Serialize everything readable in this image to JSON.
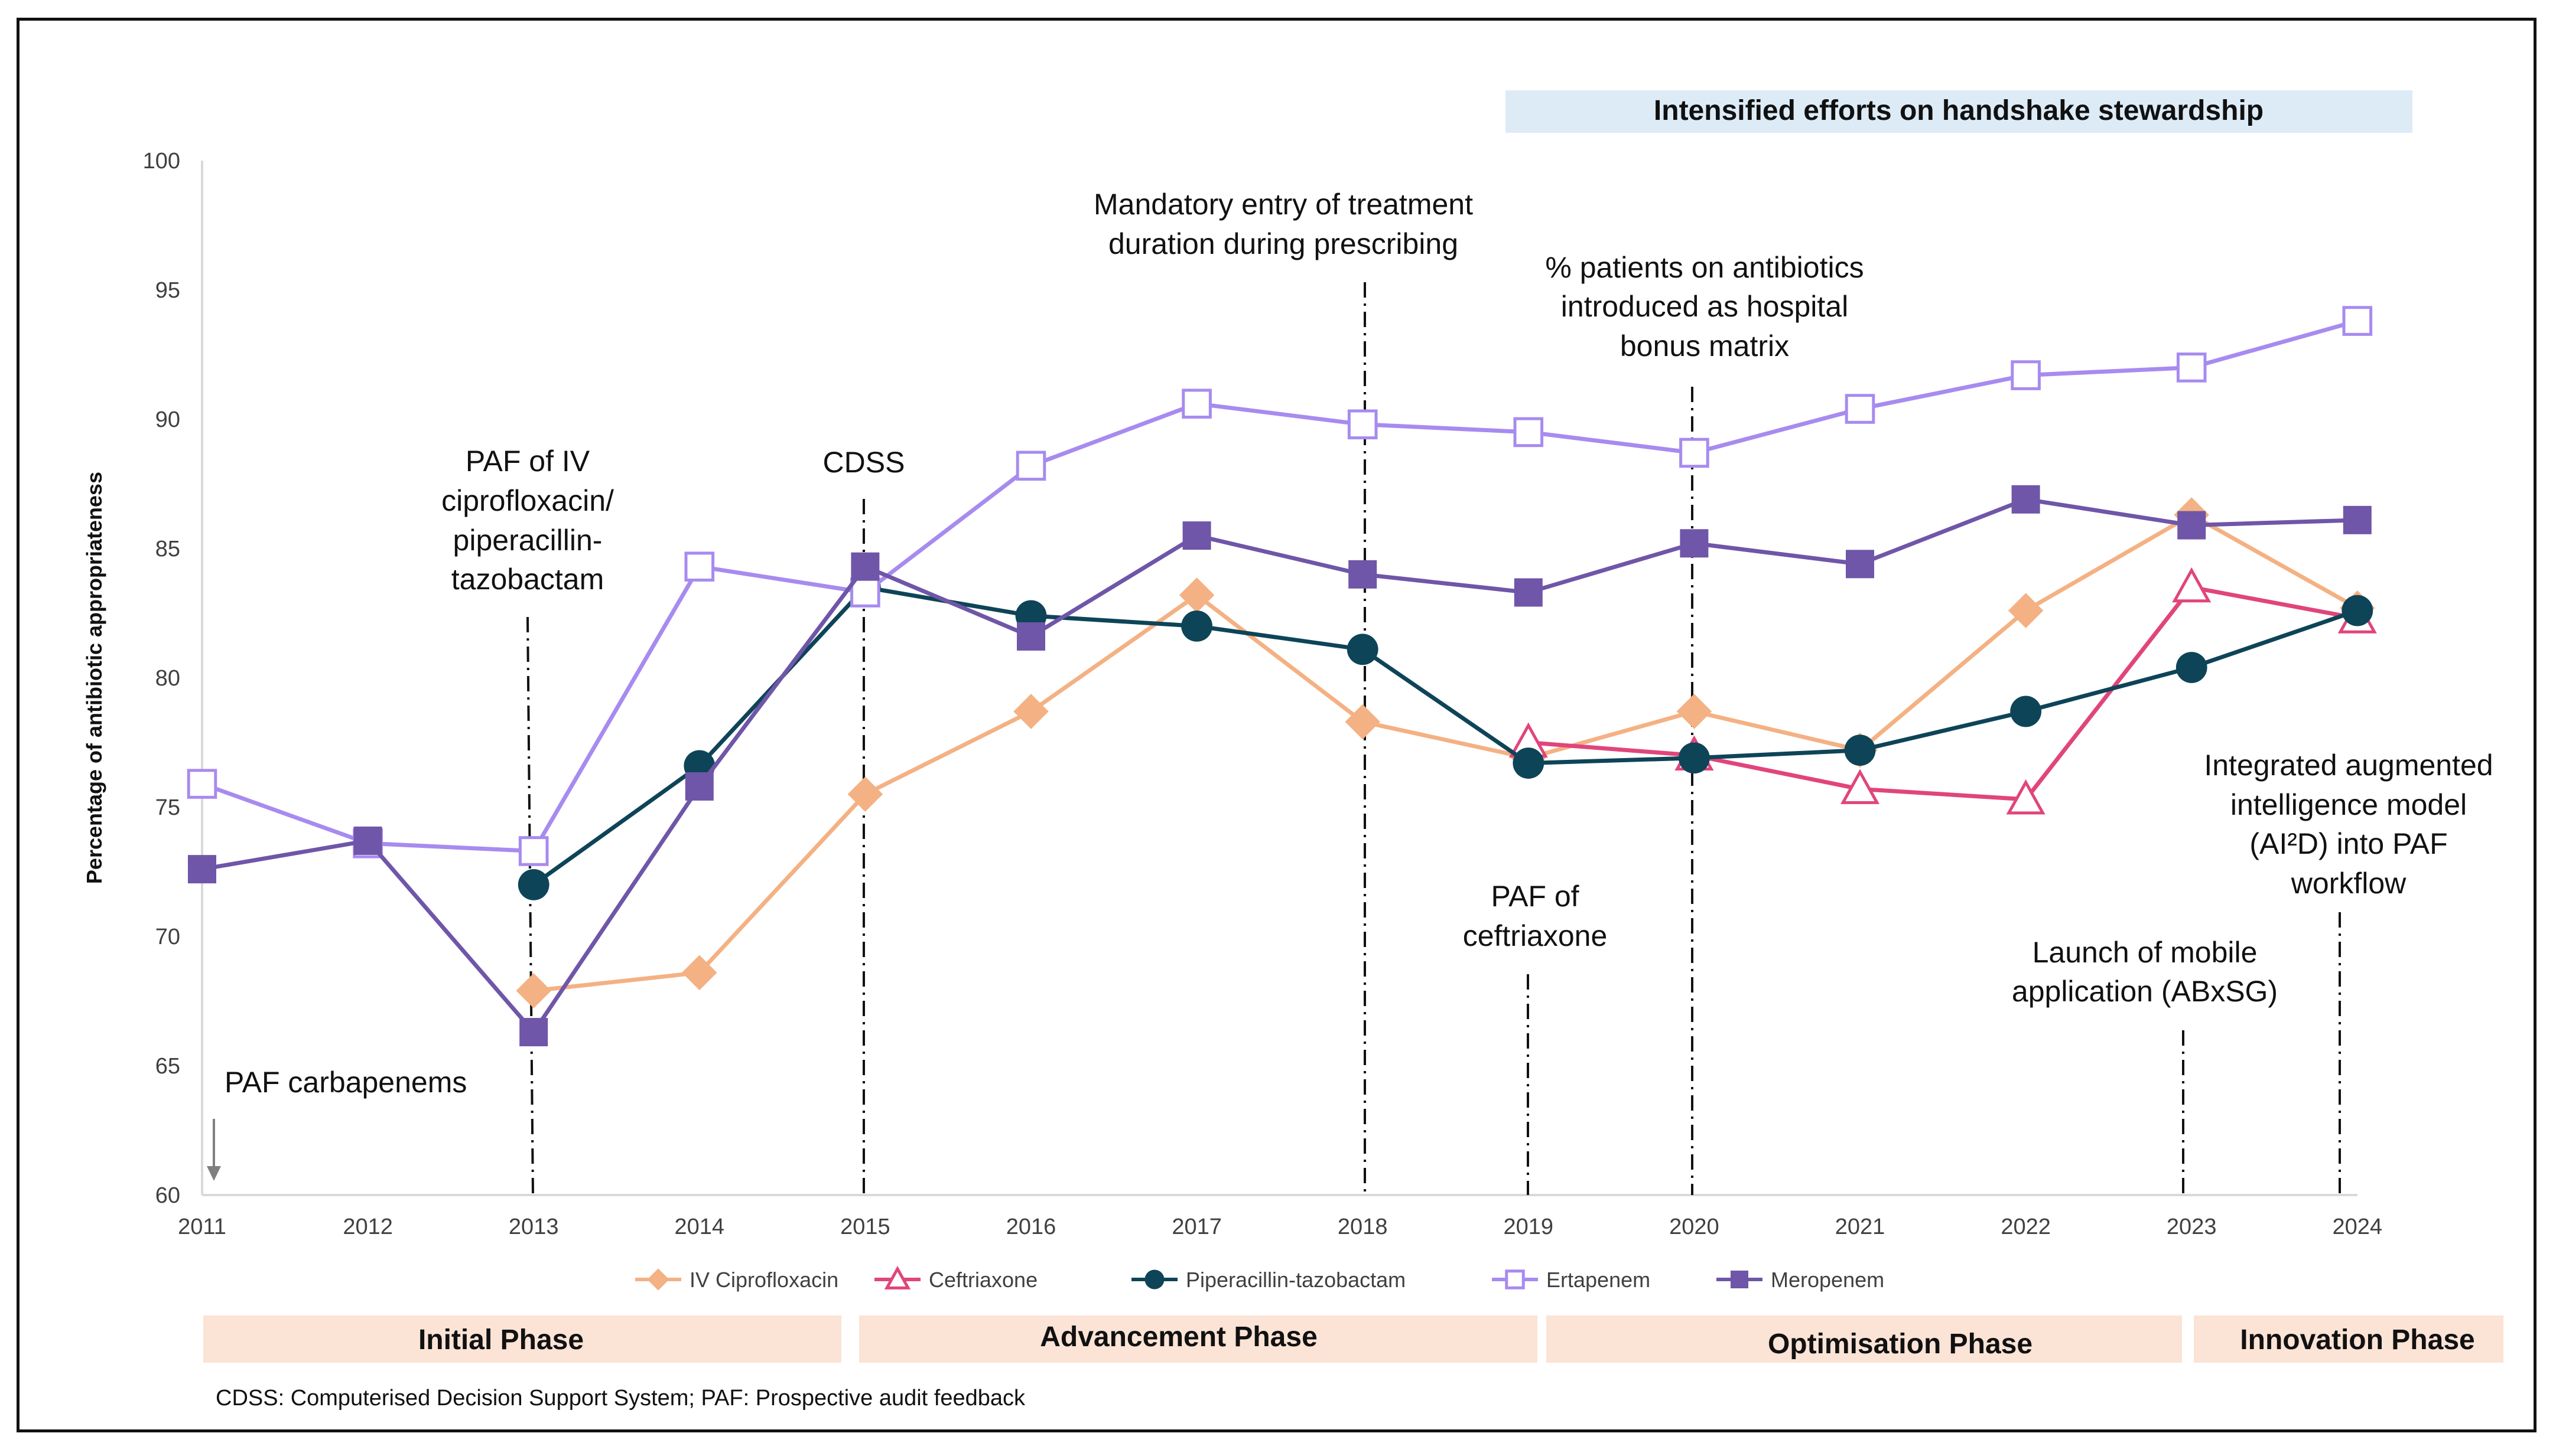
{
  "chart_data": {
    "type": "line",
    "title": "",
    "xlabel": "",
    "ylabel": "Percentage of antibiotic appropriateness",
    "ylim": [
      60,
      100
    ],
    "y_ticks": [
      60,
      65,
      70,
      75,
      80,
      85,
      90,
      95,
      100
    ],
    "x": [
      2011,
      2012,
      2013,
      2014,
      2015,
      2016,
      2017,
      2018,
      2019,
      2020,
      2021,
      2022,
      2023,
      2024
    ],
    "series": [
      {
        "name": "IV Ciprofloxacin",
        "color": "#F4B183",
        "marker": "diamond",
        "values": [
          null,
          null,
          67.9,
          68.6,
          75.5,
          78.7,
          83.2,
          78.3,
          76.9,
          78.7,
          77.2,
          82.6,
          86.3,
          82.7
        ]
      },
      {
        "name": "Ceftriaxone",
        "color": "#E0457B",
        "marker": "triangle-open",
        "values": [
          null,
          null,
          null,
          null,
          null,
          null,
          null,
          null,
          77.5,
          77.0,
          75.7,
          75.3,
          83.5,
          82.3
        ]
      },
      {
        "name": "Piperacillin-tazobactam",
        "color": "#0E4457",
        "marker": "circle",
        "values": [
          null,
          null,
          72.0,
          76.6,
          83.5,
          82.4,
          82.0,
          81.1,
          76.7,
          76.9,
          77.2,
          78.7,
          80.4,
          82.6
        ]
      },
      {
        "name": "Ertapenem",
        "color": "#A78BEF",
        "marker": "square-open",
        "values": [
          75.9,
          73.6,
          73.3,
          84.3,
          83.3,
          88.2,
          90.6,
          89.8,
          89.5,
          88.7,
          90.4,
          91.7,
          92.0,
          93.8
        ]
      },
      {
        "name": "Meropenem",
        "color": "#6F56A8",
        "marker": "square",
        "values": [
          72.6,
          73.7,
          66.3,
          75.8,
          84.3,
          81.6,
          85.5,
          84.0,
          83.3,
          85.2,
          84.4,
          86.9,
          85.9,
          86.1
        ]
      }
    ]
  },
  "annotations": {
    "paf_carbapenems": "PAF carbapenems",
    "paf_cipro": [
      "PAF of  IV",
      "ciprofloxacin/",
      "piperacillin-",
      "tazobactam"
    ],
    "cdss": "CDSS",
    "mandatory": [
      "Mandatory entry of treatment",
      "duration during prescribing"
    ],
    "bonus": [
      "% patients on antibiotics",
      "introduced as hospital",
      "bonus matrix"
    ],
    "paf_ceftriaxone": [
      "PAF of",
      "ceftriaxone"
    ],
    "mobile": [
      "Launch of mobile",
      "application (ABxSG)"
    ],
    "ai2d": [
      "Integrated augmented",
      "intelligence model",
      "(AI²D) into PAF",
      "workflow"
    ]
  },
  "banner": "Intensified efforts on handshake stewardship",
  "phases": [
    "Initial Phase",
    "Advancement Phase",
    "Optimisation Phase",
    "Innovation Phase"
  ],
  "footnote": "CDSS: Computerised Decision Support System; PAF: Prospective audit feedback",
  "colors": {
    "banner_bg": "#DDEBF7",
    "phase_bg": "#FBE3D6",
    "axis": "#D9D9D9",
    "vline": "#111111"
  }
}
